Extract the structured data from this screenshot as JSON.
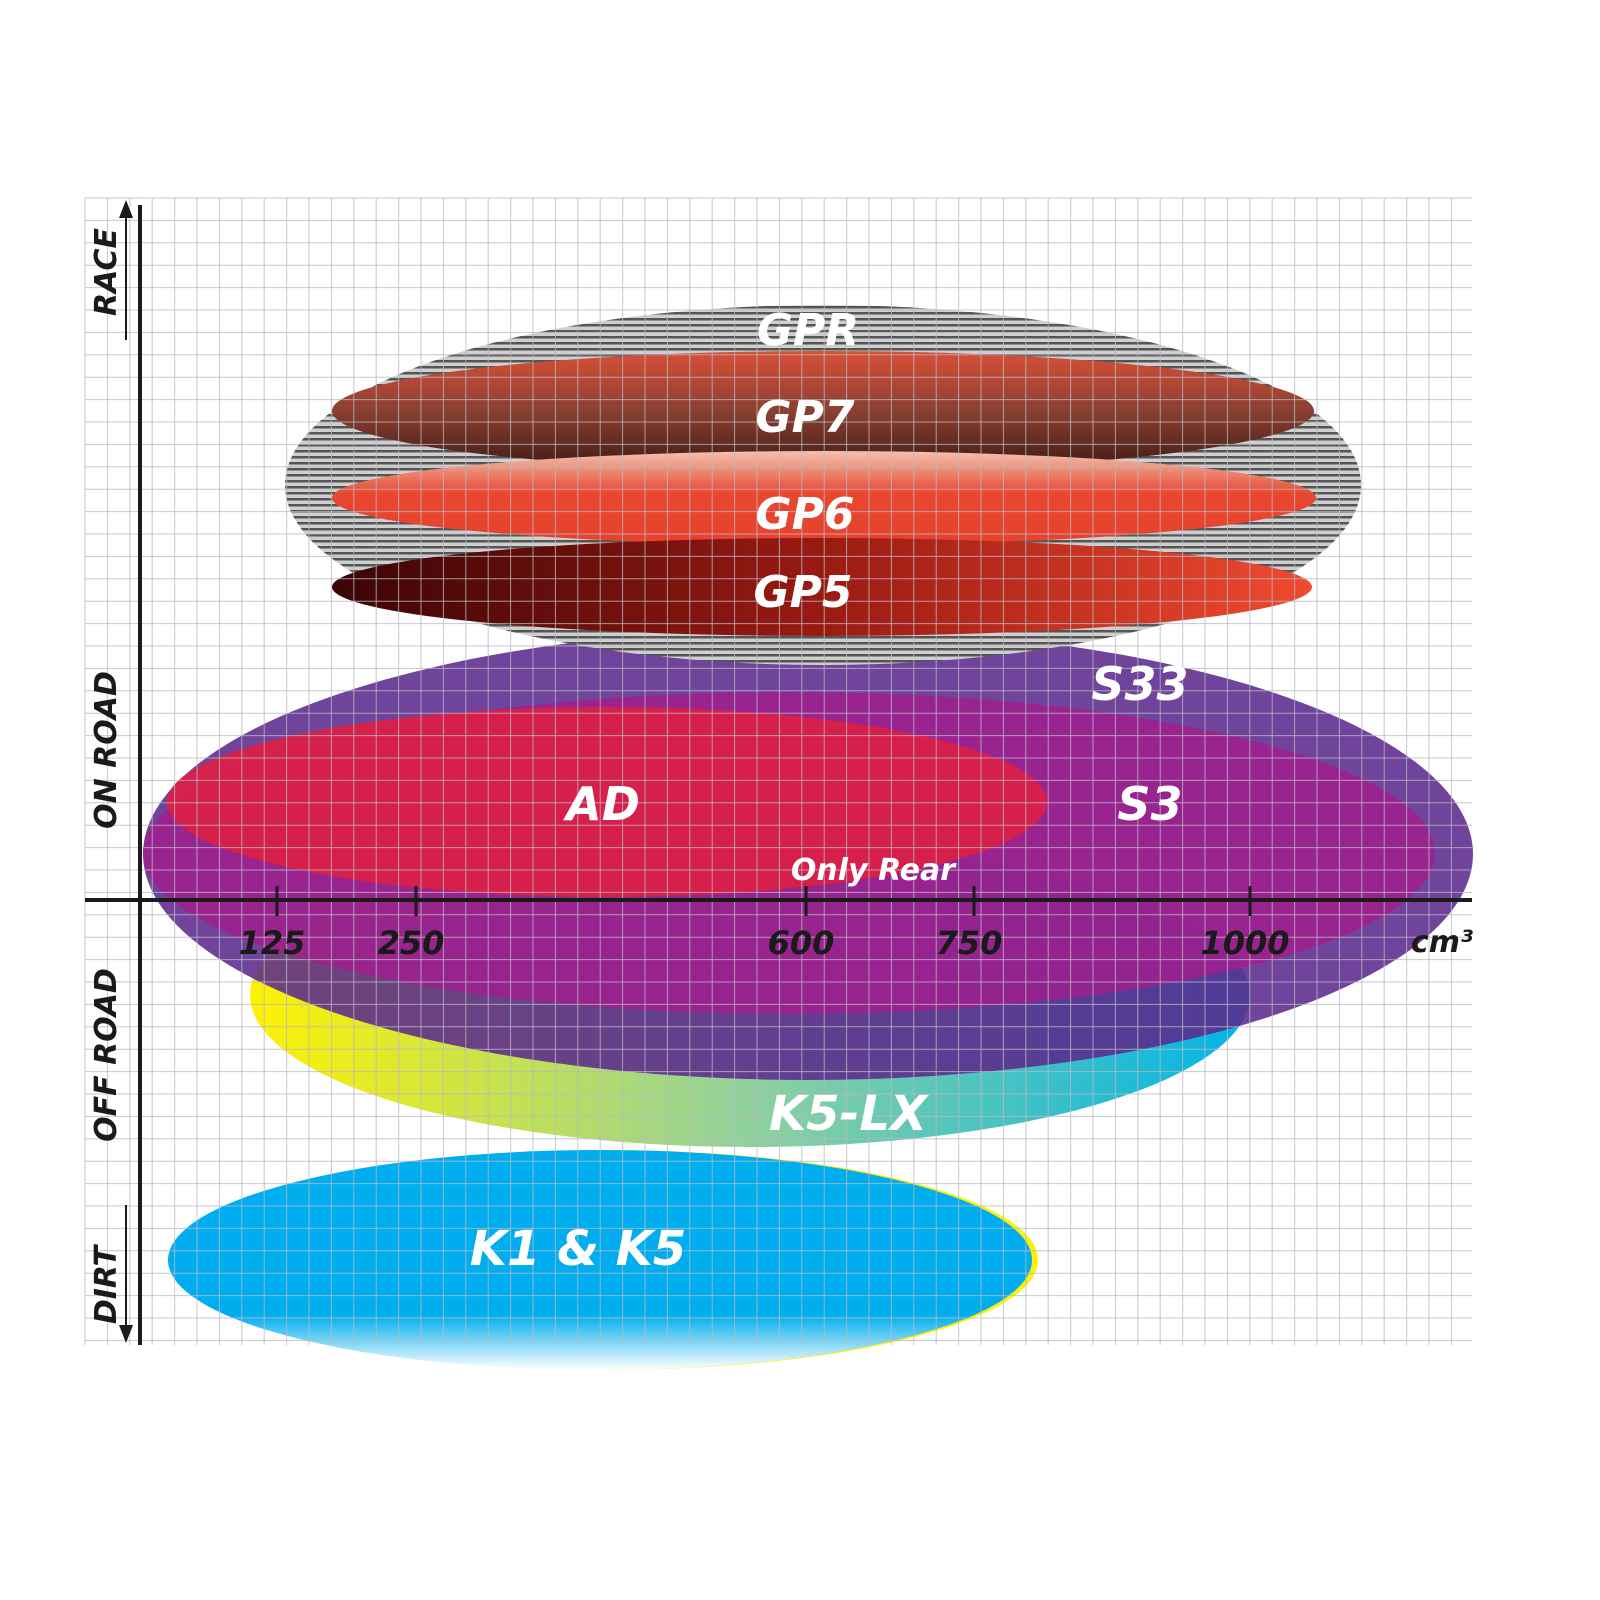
{
  "chart_data": {
    "type": "diagram-ellipses",
    "xlabel": "cm³",
    "x_ticks": [
      "125",
      "250",
      "600",
      "750",
      "1000"
    ],
    "y_categories": [
      "RACE",
      "ON ROAD",
      "OFF ROAD",
      "DIRT"
    ],
    "grid": true,
    "products": [
      {
        "name": "GPR",
        "color": "#9a9a9a"
      },
      {
        "name": "GP7",
        "color": "#8a3a2a"
      },
      {
        "name": "GP6",
        "color": "#e8412c"
      },
      {
        "name": "GP5",
        "color": "#b0201a"
      },
      {
        "name": "S33",
        "color": "#5c2a8c"
      },
      {
        "name": "S3",
        "color": "#a01f8e"
      },
      {
        "name": "AD",
        "color": "#dc1f45"
      },
      {
        "name": "K5-LX",
        "note": "Only Rear",
        "color": "#00b4e6"
      },
      {
        "name": "K1 & K5",
        "color": "#00aeef"
      }
    ]
  }
}
